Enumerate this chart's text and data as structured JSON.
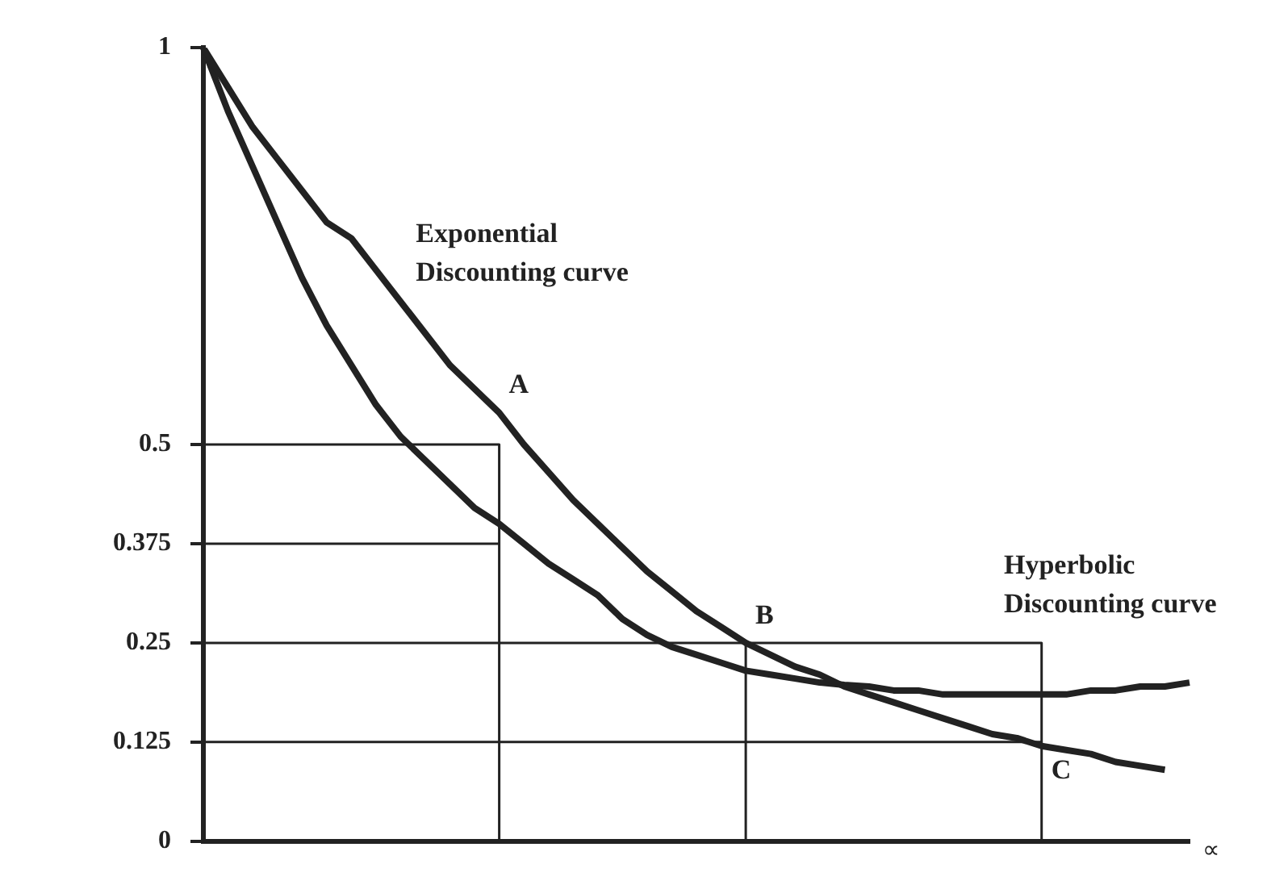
{
  "chart_data": {
    "type": "line",
    "categories": [
      null,
      null,
      null,
      null,
      null,
      null,
      null,
      null,
      null,
      null,
      null,
      null,
      null,
      null,
      null,
      null,
      null,
      null,
      null,
      null,
      null,
      null,
      null,
      null,
      null,
      null,
      null,
      null,
      null,
      null,
      null,
      null,
      null,
      null,
      null,
      null,
      null,
      null,
      null,
      null,
      null
    ],
    "series": [
      {
        "name": "Exponential Discounting curve",
        "color": "#222222",
        "values": [
          1,
          0.95,
          0.9,
          0.86,
          0.82,
          0.78,
          0.76,
          0.72,
          0.68,
          0.64,
          0.6,
          0.57,
          0.54,
          0.5,
          0.465,
          0.43,
          0.4,
          0.37,
          0.34,
          0.315,
          0.29,
          0.27,
          0.25,
          0.235,
          0.22,
          0.21,
          0.195,
          0.185,
          0.175,
          0.165,
          0.155,
          0.145,
          0.135,
          0.13,
          0.12,
          0.115,
          0.11,
          0.1,
          0.095,
          0.09,
          null
        ]
      },
      {
        "name": "Hyperbolic Discounting curve",
        "color": "#222222",
        "values": [
          1,
          0.92,
          0.85,
          0.78,
          0.71,
          0.65,
          0.6,
          0.55,
          0.51,
          0.48,
          0.45,
          0.42,
          0.4,
          0.375,
          0.35,
          0.33,
          0.31,
          0.28,
          0.26,
          0.245,
          0.235,
          0.225,
          0.215,
          0.21,
          0.205,
          0.2,
          0.197,
          0.195,
          0.19,
          0.19,
          0.185,
          0.185,
          0.185,
          0.185,
          0.185,
          0.185,
          0.19,
          0.19,
          0.195,
          0.195,
          0.2
        ]
      },
      {
        "type": "step",
        "color": "#222222",
        "values": [
          0.5,
          0.5,
          0.5,
          0.5,
          0.5,
          0.5,
          0.5,
          0.5,
          0.5,
          0.5,
          0.5,
          0.5,
          0.5,
          0,
          null,
          null,
          null,
          null,
          null,
          null,
          null,
          null,
          null,
          null,
          null,
          null,
          null,
          null,
          null,
          null,
          null,
          null,
          null,
          null,
          null,
          null,
          null,
          null,
          null,
          null,
          null
        ]
      },
      {
        "color": "#222222",
        "values": [
          0.375,
          0.375,
          0.375,
          0.375,
          0.375,
          0.375,
          0.375,
          0.375,
          0.375,
          0.375,
          0.375,
          0.375,
          0.375,
          null,
          null,
          null,
          null,
          null,
          null,
          null,
          null,
          null,
          null,
          null,
          null,
          null,
          null,
          null,
          null,
          null,
          null,
          null,
          null,
          null,
          null,
          null,
          null,
          null,
          null,
          null,
          null
        ]
      },
      {
        "type": "step",
        "color": "#222222",
        "values": [
          0.25,
          0.25,
          0.25,
          0.25,
          0.25,
          0.25,
          0.25,
          0.25,
          0.25,
          0.25,
          0.25,
          0.25,
          0.25,
          0.25,
          0.25,
          0.25,
          0.25,
          0.25,
          0.25,
          0.25,
          0.25,
          0.25,
          0.25,
          0.25,
          0.25,
          0.25,
          0.25,
          0.25,
          0.25,
          0.25,
          0.25,
          0.25,
          0.25,
          0.25,
          0.25,
          0,
          null,
          null,
          null,
          null,
          null
        ]
      },
      {
        "type": "step",
        "color": "#222222",
        "values": [
          null,
          null,
          null,
          null,
          null,
          null,
          null,
          null,
          null,
          null,
          null,
          null,
          null,
          null,
          null,
          null,
          null,
          null,
          null,
          null,
          null,
          null,
          0.25,
          0,
          null,
          null,
          null,
          null,
          null,
          null,
          null,
          null,
          null,
          null,
          null,
          null,
          null,
          null,
          null,
          null,
          null
        ]
      },
      {
        "color": "#222222",
        "values": [
          0.125,
          0.125,
          0.125,
          0.125,
          0.125,
          0.125,
          0.125,
          0.125,
          0.125,
          0.125,
          0.125,
          0.125,
          0.125,
          0.125,
          0.125,
          0.125,
          0.125,
          0.125,
          0.125,
          0.125,
          0.125,
          0.125,
          0.125,
          0.125,
          0.125,
          0.125,
          0.125,
          0.125,
          0.125,
          0.125,
          0.125,
          0.125,
          0.125,
          0.125,
          0.125,
          null,
          null,
          null,
          null,
          null,
          null
        ]
      }
    ],
    "ylim": [
      0,
      1
    ],
    "yticks": [
      0,
      0.125,
      0.25,
      0.375,
      0.5,
      1
    ],
    "tick_labels": "y",
    "grid": false,
    "legend": false,
    "marker": "none",
    "line_style": "solid",
    "annotations": [
      "A",
      "B",
      "C",
      "∝"
    ]
  }
}
